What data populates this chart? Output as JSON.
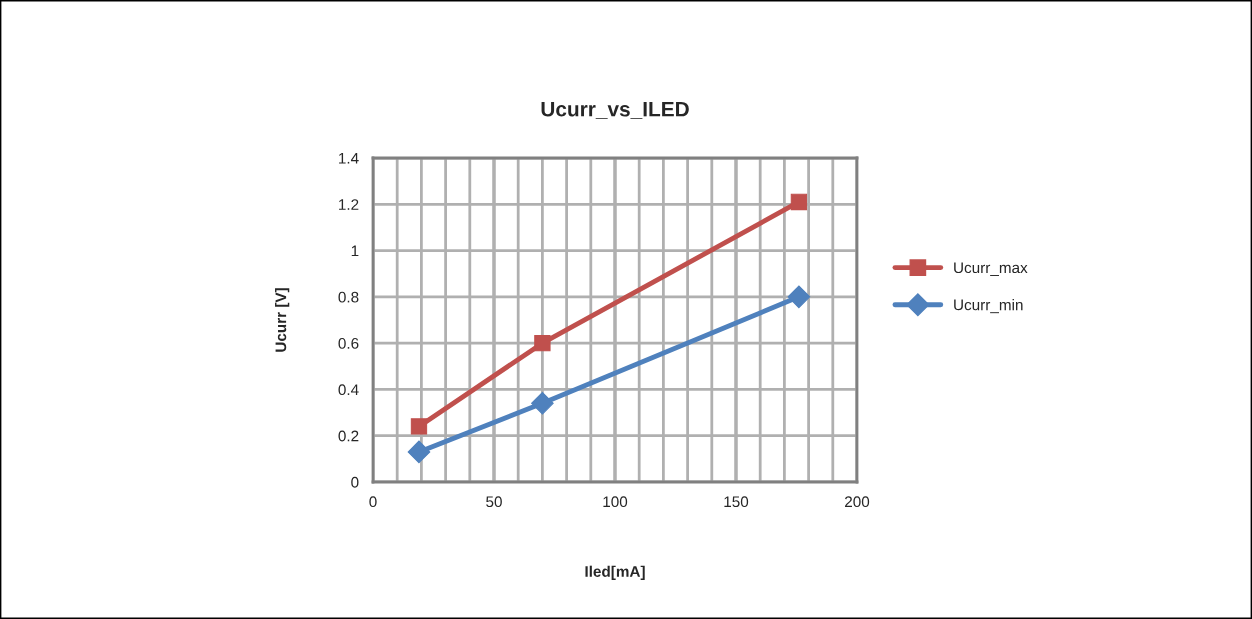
{
  "chart_data": {
    "type": "line",
    "title": "Ucurr_vs_ILED",
    "xlabel": "Iled[mA]",
    "ylabel": "Ucurr [V]",
    "x": [
      19,
      70,
      176
    ],
    "series": [
      {
        "name": "Ucurr_max",
        "color": "#c0504d",
        "values": [
          0.24,
          0.6,
          1.21
        ],
        "marker": "square"
      },
      {
        "name": "Ucurr_min",
        "color": "#4f81bd",
        "values": [
          0.13,
          0.34,
          0.8
        ],
        "marker": "diamond"
      }
    ],
    "xlim": [
      0,
      200
    ],
    "xticks": [
      0,
      {
        "value": 10,
        "label": null
      },
      {
        "value": 20,
        "label": null
      },
      {
        "value": 30,
        "label": null
      },
      {
        "value": 40,
        "label": null
      },
      50,
      {
        "value": 60,
        "label": null
      },
      {
        "value": 70,
        "label": null
      },
      {
        "value": 80,
        "label": null
      },
      {
        "value": 90,
        "label": null
      },
      100,
      {
        "value": 110,
        "label": null
      },
      {
        "value": 120,
        "label": null
      },
      {
        "value": 130,
        "label": null
      },
      {
        "value": 140,
        "label": null
      },
      150,
      {
        "value": 160,
        "label": null
      },
      {
        "value": 170,
        "label": null
      },
      {
        "value": 180,
        "label": null
      },
      {
        "value": 190,
        "label": null
      },
      200
    ],
    "ylim": [
      0,
      1.4
    ],
    "yticks": [
      0,
      0.2,
      0.4,
      0.6,
      0.8,
      1,
      1.2,
      1.4
    ],
    "grid": true,
    "legend": "right",
    "line_style": "solid"
  }
}
